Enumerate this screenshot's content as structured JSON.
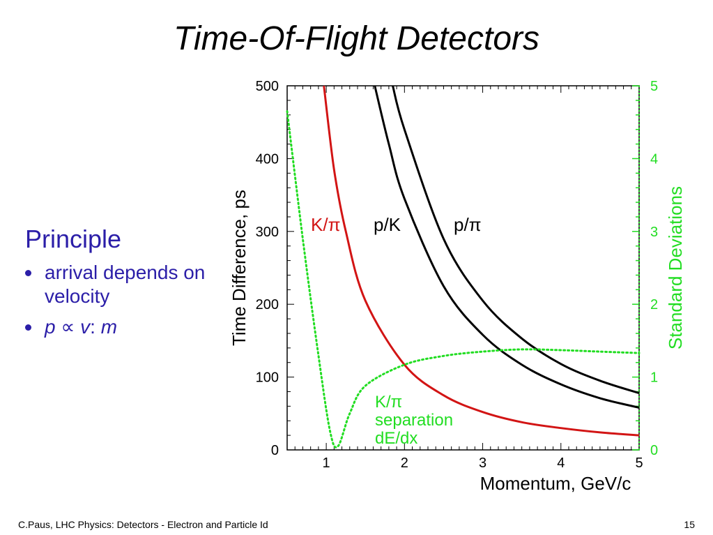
{
  "slide": {
    "title": "Time-Of-Flight Detectors",
    "principle": "Principle",
    "bullet1": "arrival depends on velocity",
    "bullet2_p": "p",
    "bullet2_sym": " ∝ ",
    "bullet2_v": "v",
    "bullet2_colon": ": ",
    "bullet2_m": "m",
    "footer": "C.Paus, LHC Physics:  Detectors - Electron and Particle Id",
    "page_number": "15"
  },
  "chart_data": {
    "type": "line",
    "xlabel": "Momentum, GeV/c",
    "ylabel": "Time Difference, ps",
    "y2label": "Standard Deviations",
    "xlim": [
      0.5,
      5
    ],
    "ylim": [
      0,
      500
    ],
    "y2lim": [
      0,
      5
    ],
    "xticks": [
      1,
      2,
      3,
      4,
      5
    ],
    "yticks": [
      0,
      100,
      200,
      300,
      400,
      500
    ],
    "y2ticks": [
      0,
      1,
      2,
      3,
      4,
      5
    ],
    "colors": {
      "k_pi": "#d21414",
      "p_k": "#000000",
      "p_pi": "#000000",
      "separation": "#22dd22",
      "axis2": "#22dd22"
    },
    "series": [
      {
        "name": "K/π",
        "key": "k_pi",
        "axis": "left",
        "style": "solid",
        "x": [
          0.97,
          1.1,
          1.25,
          1.5,
          2.0,
          2.5,
          3.0,
          3.5,
          4.0,
          4.5,
          5.0
        ],
        "y": [
          500,
          385,
          300,
          205,
          117,
          75,
          52,
          38,
          30,
          24,
          20
        ]
      },
      {
        "name": "p/K",
        "key": "p_k",
        "axis": "left",
        "style": "solid",
        "x": [
          1.62,
          1.8,
          2.0,
          2.5,
          3.0,
          3.5,
          4.0,
          4.5,
          5.0
        ],
        "y": [
          500,
          420,
          345,
          225,
          158,
          117,
          90,
          71,
          58
        ]
      },
      {
        "name": "p/π",
        "key": "p_pi",
        "axis": "left",
        "style": "solid",
        "x": [
          1.85,
          2.0,
          2.5,
          3.0,
          3.5,
          4.0,
          4.5,
          5.0
        ],
        "y": [
          500,
          440,
          290,
          205,
          153,
          118,
          95,
          78
        ]
      },
      {
        "name": "K/π separation dE/dx",
        "key": "separation",
        "axis": "right",
        "style": "dotted",
        "x": [
          0.5,
          0.7,
          0.9,
          1.05,
          1.15,
          1.3,
          1.5,
          2.0,
          2.5,
          3.0,
          3.5,
          4.0,
          4.5,
          5.0
        ],
        "y": [
          4.65,
          2.9,
          1.3,
          0.25,
          0.05,
          0.5,
          0.88,
          1.17,
          1.29,
          1.35,
          1.38,
          1.37,
          1.35,
          1.33
        ]
      }
    ],
    "annotations": [
      {
        "key": "k_pi",
        "text": "K/π"
      },
      {
        "key": "p_k",
        "text": "p/K"
      },
      {
        "key": "p_pi",
        "text": "p/π"
      },
      {
        "key": "sep1",
        "text": "K/π"
      },
      {
        "key": "sep2",
        "text": "separation"
      },
      {
        "key": "sep3",
        "text": "dE/dx"
      }
    ]
  }
}
